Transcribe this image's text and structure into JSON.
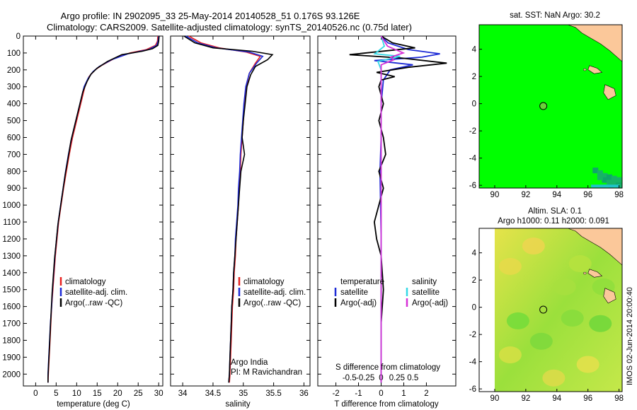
{
  "header": {
    "title_line1": "Argo profile: IN 2902095_33 25-May-2014 20140528_51 0.176S 93.126E",
    "title_line2": "Climatology: CARS2009. Satellite-adjusted climatology: synTS_20140526.nc (0.75d later)"
  },
  "colors": {
    "climatology": "#e8201e",
    "satellite_adj": "#1d2bd6",
    "argo": "#000000",
    "salinity_satellite": "#36d8e6",
    "salinity_argo": "#d62fd6",
    "land": "#fbc89a",
    "sst_ocean": "#00ff00",
    "sst_cells": "#17b366",
    "sla_field": "#9be03c"
  },
  "chart_data": [
    {
      "type": "line",
      "panel": "temperature",
      "xlabel": "temperature (deg C)",
      "ylabel": "",
      "xlim": [
        -3,
        31
      ],
      "ylim": [
        2070,
        0
      ],
      "xticks": [
        0,
        5,
        10,
        15,
        20,
        25,
        30
      ],
      "yticks": [
        0,
        100,
        200,
        300,
        400,
        500,
        600,
        700,
        800,
        900,
        1000,
        1100,
        1200,
        1300,
        1400,
        1500,
        1600,
        1700,
        1800,
        1900,
        2000
      ],
      "legend": [
        "climatology",
        "satellite-adj. clim.",
        "Argo(..raw -QC)"
      ],
      "series": [
        {
          "name": "climatology",
          "color": "#e8201e",
          "points": [
            [
              29.8,
              0
            ],
            [
              29.7,
              30
            ],
            [
              29.2,
              55
            ],
            [
              27,
              80
            ],
            [
              23,
              100
            ],
            [
              19,
              135
            ],
            [
              16,
              175
            ],
            [
              14.5,
              200
            ],
            [
              13,
              240
            ],
            [
              12,
              300
            ],
            [
              11,
              400
            ],
            [
              10,
              500
            ],
            [
              9,
              600
            ],
            [
              8.2,
              700
            ],
            [
              7.5,
              800
            ],
            [
              6.8,
              900
            ],
            [
              6.2,
              1000
            ],
            [
              5.6,
              1100
            ],
            [
              5.2,
              1200
            ],
            [
              4.8,
              1300
            ],
            [
              4.5,
              1400
            ],
            [
              4.2,
              1500
            ],
            [
              3.9,
              1600
            ],
            [
              3.7,
              1700
            ],
            [
              3.5,
              1800
            ],
            [
              3.3,
              1900
            ],
            [
              3.1,
              2000
            ],
            [
              3.0,
              2050
            ]
          ]
        },
        {
          "name": "satellite-adj. clim.",
          "color": "#1d2bd6",
          "points": [
            [
              30,
              0
            ],
            [
              29.9,
              25
            ],
            [
              29.5,
              55
            ],
            [
              27.5,
              80
            ],
            [
              22.5,
              105
            ],
            [
              18.5,
              140
            ],
            [
              15.5,
              180
            ],
            [
              14,
              210
            ],
            [
              12.8,
              250
            ],
            [
              11.8,
              300
            ],
            [
              10.8,
              400
            ],
            [
              9.8,
              500
            ],
            [
              8.8,
              600
            ],
            [
              8,
              700
            ],
            [
              7.3,
              800
            ],
            [
              6.7,
              900
            ],
            [
              6.1,
              1000
            ],
            [
              5.5,
              1100
            ],
            [
              5.1,
              1200
            ],
            [
              4.7,
              1300
            ],
            [
              4.4,
              1400
            ],
            [
              4.1,
              1500
            ],
            [
              3.9,
              1600
            ],
            [
              3.6,
              1700
            ],
            [
              3.4,
              1800
            ],
            [
              3.2,
              1900
            ],
            [
              3.0,
              2000
            ],
            [
              3.0,
              2050
            ]
          ]
        },
        {
          "name": "Argo(..raw -QC)",
          "color": "#000000",
          "points": [
            [
              30.1,
              0
            ],
            [
              30,
              30
            ],
            [
              29.8,
              55
            ],
            [
              28.5,
              75
            ],
            [
              26,
              90
            ],
            [
              21,
              110
            ],
            [
              17.5,
              150
            ],
            [
              15,
              190
            ],
            [
              13.5,
              225
            ],
            [
              12.5,
              270
            ],
            [
              11.5,
              330
            ],
            [
              10.6,
              420
            ],
            [
              9.6,
              520
            ],
            [
              8.6,
              620
            ],
            [
              7.9,
              720
            ],
            [
              7.2,
              820
            ],
            [
              6.6,
              920
            ],
            [
              6.0,
              1020
            ],
            [
              5.4,
              1120
            ],
            [
              5.0,
              1220
            ],
            [
              4.6,
              1320
            ],
            [
              4.3,
              1420
            ],
            [
              4.0,
              1520
            ],
            [
              3.8,
              1620
            ],
            [
              3.6,
              1720
            ],
            [
              3.4,
              1820
            ],
            [
              3.2,
              1920
            ],
            [
              3.0,
              2020
            ],
            [
              3.0,
              2050
            ]
          ]
        }
      ]
    },
    {
      "type": "line",
      "panel": "salinity",
      "xlabel": "salinity",
      "ylabel": "",
      "xlim": [
        33.8,
        36.1
      ],
      "ylim": [
        2070,
        0
      ],
      "xticks": [
        34,
        34.5,
        35,
        35.5,
        36
      ],
      "legend": [
        "climatology",
        "satellite-adj. clim.",
        "Argo(..raw -QC)"
      ],
      "annotation": [
        "Argo India",
        "PI: M Ravichandran"
      ],
      "series": [
        {
          "name": "climatology",
          "color": "#e8201e",
          "points": [
            [
              34.1,
              0
            ],
            [
              34.3,
              40
            ],
            [
              34.6,
              70
            ],
            [
              35.05,
              95
            ],
            [
              35.28,
              120
            ],
            [
              35.2,
              160
            ],
            [
              35.1,
              220
            ],
            [
              35.05,
              300
            ],
            [
              35.02,
              400
            ],
            [
              35.0,
              500
            ],
            [
              34.98,
              600
            ],
            [
              34.96,
              700
            ],
            [
              34.95,
              800
            ],
            [
              34.93,
              900
            ],
            [
              34.92,
              1000
            ],
            [
              34.9,
              1100
            ],
            [
              34.88,
              1200
            ],
            [
              34.87,
              1300
            ],
            [
              34.85,
              1400
            ],
            [
              34.84,
              1500
            ],
            [
              34.82,
              1600
            ],
            [
              34.81,
              1700
            ],
            [
              34.8,
              1800
            ],
            [
              34.79,
              1900
            ],
            [
              34.78,
              2000
            ],
            [
              34.77,
              2050
            ]
          ]
        },
        {
          "name": "satellite-adj. clim.",
          "color": "#1d2bd6",
          "points": [
            [
              34.05,
              0
            ],
            [
              34.25,
              40
            ],
            [
              34.55,
              70
            ],
            [
              35.1,
              95
            ],
            [
              35.32,
              120
            ],
            [
              35.22,
              160
            ],
            [
              35.1,
              220
            ],
            [
              35.04,
              300
            ],
            [
              35.01,
              400
            ],
            [
              34.99,
              500
            ],
            [
              34.97,
              600
            ],
            [
              34.95,
              700
            ],
            [
              34.94,
              800
            ],
            [
              34.92,
              900
            ],
            [
              34.91,
              1000
            ],
            [
              34.89,
              1100
            ],
            [
              34.87,
              1200
            ],
            [
              34.86,
              1300
            ],
            [
              34.84,
              1400
            ],
            [
              34.83,
              1500
            ],
            [
              34.81,
              1600
            ],
            [
              34.8,
              1700
            ],
            [
              34.79,
              1800
            ],
            [
              34.78,
              1900
            ],
            [
              34.77,
              2000
            ],
            [
              34.76,
              2050
            ]
          ]
        },
        {
          "name": "Argo(..raw -QC)",
          "color": "#000000",
          "points": [
            [
              34.02,
              0
            ],
            [
              34.2,
              40
            ],
            [
              34.5,
              70
            ],
            [
              35.15,
              90
            ],
            [
              35.48,
              110
            ],
            [
              35.4,
              140
            ],
            [
              35.2,
              180
            ],
            [
              35.12,
              230
            ],
            [
              35.06,
              300
            ],
            [
              35.03,
              400
            ],
            [
              35.0,
              500
            ],
            [
              34.98,
              600
            ],
            [
              35.02,
              700
            ],
            [
              34.96,
              800
            ],
            [
              34.94,
              900
            ],
            [
              34.92,
              1000
            ],
            [
              34.9,
              1100
            ],
            [
              34.88,
              1200
            ],
            [
              34.86,
              1300
            ],
            [
              34.84,
              1400
            ],
            [
              34.83,
              1500
            ],
            [
              34.81,
              1600
            ],
            [
              34.8,
              1700
            ],
            [
              34.79,
              1800
            ],
            [
              34.78,
              1900
            ],
            [
              34.77,
              2000
            ],
            [
              34.76,
              2050
            ]
          ]
        }
      ]
    },
    {
      "type": "line",
      "panel": "difference",
      "xlabel": "T difference from climatology",
      "xlabel_top": "S difference from climatology",
      "xlim_T": [
        -2.8,
        3.3
      ],
      "ylim": [
        2070,
        0
      ],
      "xticks_T": [
        -2,
        -1,
        0,
        1,
        2
      ],
      "xticks_S": [
        -0.5,
        -0.25,
        0,
        0.25,
        0.5
      ],
      "legend_left_title": "temperature",
      "legend_right_title": "salinity",
      "legend": [
        "satellite",
        "Argo(-adj)",
        "satellite",
        "Argo(-adj)"
      ],
      "series": [
        {
          "name": "satellite",
          "group": "temperature",
          "color": "#1d2bd6",
          "points": [
            [
              0,
              0
            ],
            [
              0.3,
              40
            ],
            [
              1.2,
              80
            ],
            [
              2.6,
              105
            ],
            [
              1.8,
              125
            ],
            [
              -0.3,
              145
            ],
            [
              1.4,
              170
            ],
            [
              0.4,
              200
            ],
            [
              0.1,
              260
            ],
            [
              0,
              400
            ],
            [
              0,
              600
            ],
            [
              -0.05,
              800
            ],
            [
              0,
              1200
            ],
            [
              0,
              2050
            ]
          ]
        },
        {
          "name": "Argo(-adj)",
          "group": "temperature",
          "color": "#000000",
          "points": [
            [
              0,
              0
            ],
            [
              0.5,
              40
            ],
            [
              1.5,
              70
            ],
            [
              -1.4,
              110
            ],
            [
              0.9,
              130
            ],
            [
              2.9,
              160
            ],
            [
              1.2,
              185
            ],
            [
              -0.2,
              215
            ],
            [
              0.6,
              240
            ],
            [
              0,
              260
            ],
            [
              -0.1,
              300
            ],
            [
              0.1,
              400
            ],
            [
              -0.1,
              500
            ],
            [
              0.1,
              600
            ],
            [
              0.2,
              700
            ],
            [
              -0.1,
              800
            ],
            [
              0.1,
              900
            ],
            [
              -0.1,
              1000
            ],
            [
              -0.3,
              1100
            ],
            [
              -0.2,
              1200
            ],
            [
              0,
              1300
            ],
            [
              0.1,
              1500
            ],
            [
              0,
              1700
            ],
            [
              0,
              2050
            ]
          ]
        },
        {
          "name": "satellite",
          "group": "salinity",
          "color": "#36d8e6",
          "points": [
            [
              0,
              0
            ],
            [
              0.05,
              60
            ],
            [
              -0.1,
              105
            ],
            [
              0.3,
              120
            ],
            [
              -0.05,
              150
            ],
            [
              0,
              200
            ],
            [
              0,
              2050
            ]
          ]
        },
        {
          "name": "Argo(-adj)",
          "group": "salinity",
          "color": "#d62fd6",
          "points": [
            [
              0,
              0
            ],
            [
              0.1,
              60
            ],
            [
              0.35,
              100
            ],
            [
              0.15,
              125
            ],
            [
              0.2,
              140
            ],
            [
              0,
              170
            ],
            [
              0,
              2050
            ]
          ]
        }
      ]
    },
    {
      "type": "heatmap",
      "panel": "sst-map",
      "title": "sat. SST: NaN Argo: 30.2",
      "xlim": [
        89,
        98.2
      ],
      "ylim": [
        -6.2,
        5.8
      ],
      "xticks": [
        90,
        92,
        94,
        96,
        98
      ],
      "yticks": [
        -6,
        -4,
        -2,
        0,
        2,
        4
      ],
      "argo_position": [
        93.126,
        -0.176
      ]
    },
    {
      "type": "heatmap",
      "panel": "sla-map",
      "title": "Altim. SLA: 0.1",
      "subtitle": "Argo h1000: 0.11 h2000: 0.091",
      "xlim": [
        89,
        98.2
      ],
      "ylim": [
        -6.2,
        5.8
      ],
      "xticks": [
        90,
        92,
        94,
        96,
        98
      ],
      "yticks": [
        -6,
        -4,
        -2,
        0,
        2,
        4
      ],
      "argo_position": [
        93.126,
        -0.176
      ]
    }
  ],
  "footer": {
    "credit": "IMOS 02-Jun-2014 20:00:40"
  }
}
